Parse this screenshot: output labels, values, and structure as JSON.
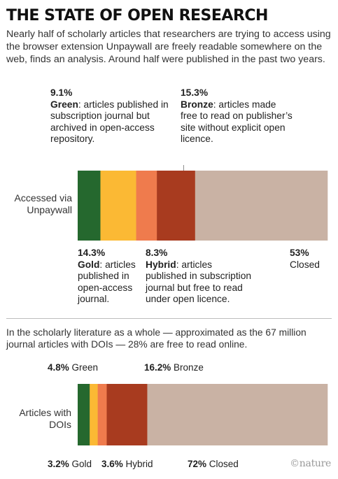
{
  "title": "THE STATE OF OPEN RESEARCH",
  "subtitle": "Nearly half of scholarly articles that researchers are trying to access using the browser extension Unpaywall are freely readable somewhere on the web, finds an analysis. Around half were published in the past two years.",
  "colors": {
    "green": "#25682e",
    "gold": "#fbb934",
    "hybrid": "#ef7b4d",
    "bronze": "#a83b1f",
    "closed": "#c9b2a4"
  },
  "chart_data": [
    {
      "type": "bar",
      "orientation": "horizontal-stacked",
      "row_label": "Accessed via Unpaywall",
      "categories": [
        "Green",
        "Gold",
        "Hybrid",
        "Bronze",
        "Closed"
      ],
      "values": [
        9.1,
        14.3,
        8.3,
        15.3,
        53
      ],
      "unit": "%",
      "annotations": [
        {
          "pct": "9.1%",
          "name": "Green",
          "desc": ": articles published in subscription journal but archived in open-access repository."
        },
        {
          "pct": "15.3%",
          "name": "Bronze",
          "desc": ": articles made free to read on publisher’s site without explicit open licence."
        },
        {
          "pct": "14.3%",
          "name": "Gold",
          "desc": ": articles published in open-access journal."
        },
        {
          "pct": "8.3%",
          "name": "Hybrid",
          "desc": ": articles published in subscription journal but free to read under open licence."
        },
        {
          "pct": "53%",
          "name": "",
          "desc": "Closed"
        }
      ]
    },
    {
      "type": "bar",
      "orientation": "horizontal-stacked",
      "row_label": "Articles with DOIs",
      "categories": [
        "Green",
        "Gold",
        "Hybrid",
        "Bronze",
        "Closed"
      ],
      "values": [
        4.8,
        3.2,
        3.6,
        16.2,
        72
      ],
      "unit": "%",
      "labels": [
        {
          "pct": "4.8%",
          "name": "Green"
        },
        {
          "pct": "16.2%",
          "name": "Bronze"
        },
        {
          "pct": "3.2%",
          "name": "Gold"
        },
        {
          "pct": "3.6%",
          "name": "Hybrid"
        },
        {
          "pct": "72%",
          "name": "Closed"
        }
      ]
    }
  ],
  "section2_text": "In the scholarly literature as a whole — approximated as the 67 million journal articles with DOIs — 28% are free to read online.",
  "brand": "©nature"
}
